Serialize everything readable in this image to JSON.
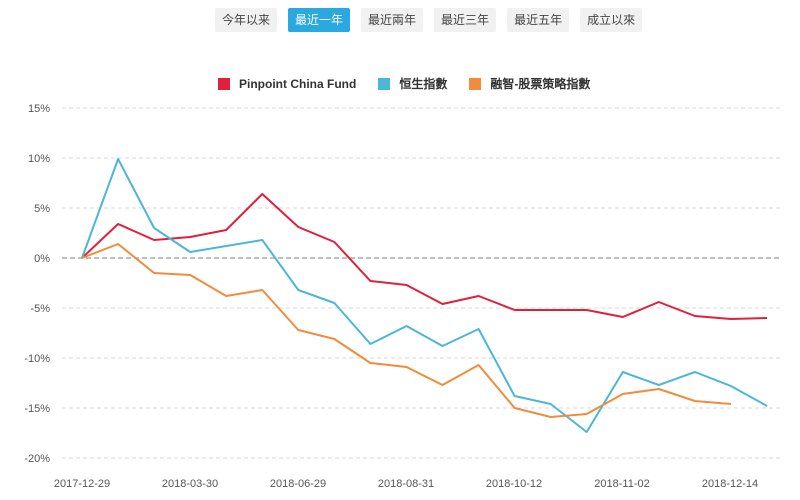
{
  "tabs": [
    {
      "label": "今年以来",
      "active": false
    },
    {
      "label": "最近一年",
      "active": true
    },
    {
      "label": "最近兩年",
      "active": false
    },
    {
      "label": "最近三年",
      "active": false
    },
    {
      "label": "最近五年",
      "active": false
    },
    {
      "label": "成立以來",
      "active": false
    }
  ],
  "colors": {
    "accent": "#2aa8e0",
    "grid": "#d9d9d9",
    "zero_line": "#999999"
  },
  "chart_data": {
    "type": "line",
    "title": "",
    "xlabel": "",
    "ylabel": "",
    "ylim": [
      -20,
      15
    ],
    "y_ticks": [
      15,
      10,
      5,
      0,
      -5,
      -10,
      -15,
      -20
    ],
    "y_tick_labels": [
      "15%",
      "10%",
      "5%",
      "0%",
      "-5%",
      "-10%",
      "-15%",
      "-20%"
    ],
    "x_ticks": [
      "2017-12-29",
      "2018-03-30",
      "2018-06-29",
      "2018-08-31",
      "2018-10-12",
      "2018-11-02",
      "2018-12-14"
    ],
    "legend_position": "top-center",
    "grid": true,
    "series": [
      {
        "name": "Pinpoint China Fund",
        "color": "#e0203a",
        "values": [
          0,
          3.4,
          1.8,
          2.1,
          2.8,
          6.4,
          3.1,
          1.6,
          -2.3,
          -2.7,
          -4.6,
          -3.8,
          -5.2,
          -5.2,
          -5.2,
          -5.9,
          -4.4,
          -5.8,
          -6.1,
          -6.0
        ]
      },
      {
        "name": "恒生指數",
        "color": "#4db6d8",
        "values": [
          0,
          9.9,
          3.0,
          0.6,
          1.2,
          1.8,
          -3.2,
          -4.5,
          -8.6,
          -6.8,
          -8.8,
          -7.1,
          -13.8,
          -14.6,
          -17.4,
          -11.4,
          -12.7,
          -11.4,
          -12.8,
          -14.8
        ]
      },
      {
        "name": "融智-股票策略指數",
        "color": "#f08c3c",
        "values": [
          0,
          1.4,
          -1.5,
          -1.7,
          -3.8,
          -3.2,
          -7.2,
          -8.1,
          -10.5,
          -10.9,
          -12.7,
          -10.7,
          -15.0,
          -15.9,
          -15.6,
          -13.6,
          -13.1,
          -14.3,
          -14.6
        ]
      }
    ]
  }
}
